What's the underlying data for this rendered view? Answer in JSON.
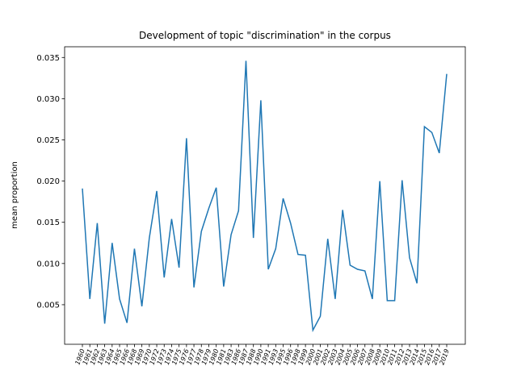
{
  "chart_data": {
    "type": "line",
    "title": "Development of topic \"discrimination\" in the corpus",
    "y_label": "mean proportion",
    "categories": [
      "1960",
      "1961",
      "1962",
      "1963",
      "1964",
      "1965",
      "1966",
      "1968",
      "1969",
      "1970",
      "1972",
      "1973",
      "1974",
      "1975",
      "1976",
      "1977",
      "1978",
      "1979",
      "1980",
      "1981",
      "1983",
      "1986",
      "1987",
      "1988",
      "1990",
      "1991",
      "1993",
      "1995",
      "1996",
      "1998",
      "1999",
      "2000",
      "2001",
      "2002",
      "2003",
      "2004",
      "2005",
      "2006",
      "2007",
      "2008",
      "2009",
      "2010",
      "2011",
      "2012",
      "2013",
      "2014",
      "2015",
      "2016",
      "2017",
      "2019"
    ],
    "series": [
      {
        "name": "mean proportion",
        "color": "#1f77b4",
        "values": [
          0.0191,
          0.0057,
          0.0149,
          0.0027,
          0.0125,
          0.0057,
          0.0028,
          0.0118,
          0.0048,
          0.0131,
          0.0188,
          0.0083,
          0.0154,
          0.0095,
          0.0252,
          0.0071,
          0.0139,
          0.0167,
          0.0192,
          0.0072,
          0.0135,
          0.0164,
          0.0346,
          0.0131,
          0.0298,
          0.0093,
          0.0118,
          0.0179,
          0.0149,
          0.0111,
          0.011,
          0.0019,
          0.0036,
          0.013,
          0.0057,
          0.0165,
          0.0098,
          0.0093,
          0.0091,
          0.0057,
          0.02,
          0.0055,
          0.0055,
          0.0201,
          0.0107,
          0.0076,
          0.0266,
          0.0259,
          0.0234,
          0.033
        ]
      }
    ],
    "ylim": [
      0.0002,
      0.0363
    ],
    "yticks": [
      0.005,
      {
        "value": 0.01,
        "label": "0.010"
      },
      0.015,
      {
        "value": 0.02,
        "label": "0.020"
      },
      0.025,
      {
        "value": 0.03,
        "label": "0.030"
      },
      0.035
    ],
    "grid": false
  }
}
